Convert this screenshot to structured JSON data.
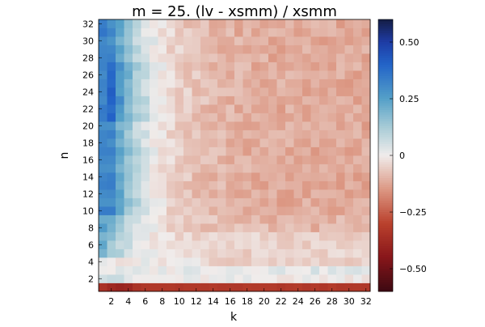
{
  "chart_data": {
    "type": "heatmap",
    "title": "m = 25. (lv - xsmm) / xsmm",
    "xlabel": "k",
    "ylabel": "n",
    "x_ticks": [
      2,
      4,
      6,
      8,
      10,
      12,
      14,
      16,
      18,
      20,
      22,
      24,
      26,
      28,
      30,
      32
    ],
    "y_ticks": [
      2,
      4,
      6,
      8,
      10,
      12,
      14,
      16,
      18,
      20,
      22,
      24,
      26,
      28,
      30,
      32
    ],
    "xlim": [
      1,
      32
    ],
    "ylim": [
      1,
      32
    ],
    "colorbar": {
      "range": [
        -0.6,
        0.6
      ],
      "ticks": [
        0.5,
        0.25,
        0,
        -0.25,
        -0.5
      ],
      "tick_labels": [
        "0.50",
        "0.25",
        "0",
        "−0.25",
        "−0.50"
      ],
      "colormap": "balance (diverging: blue = positive, red = negative)"
    },
    "grid": false,
    "description_of_values": "Each cell value v(k, n) is the relative difference; approximate trend: strong positive (~0.3–0.6) at small k (1–5) and n ≥ 8, decaying to ~0 near k≈14, slightly negative (~−0.1 to −0.15) for k > 16; row n=1 strongly negative (~−0.3 to −0.45); rows n=2–7 near zero."
  }
}
